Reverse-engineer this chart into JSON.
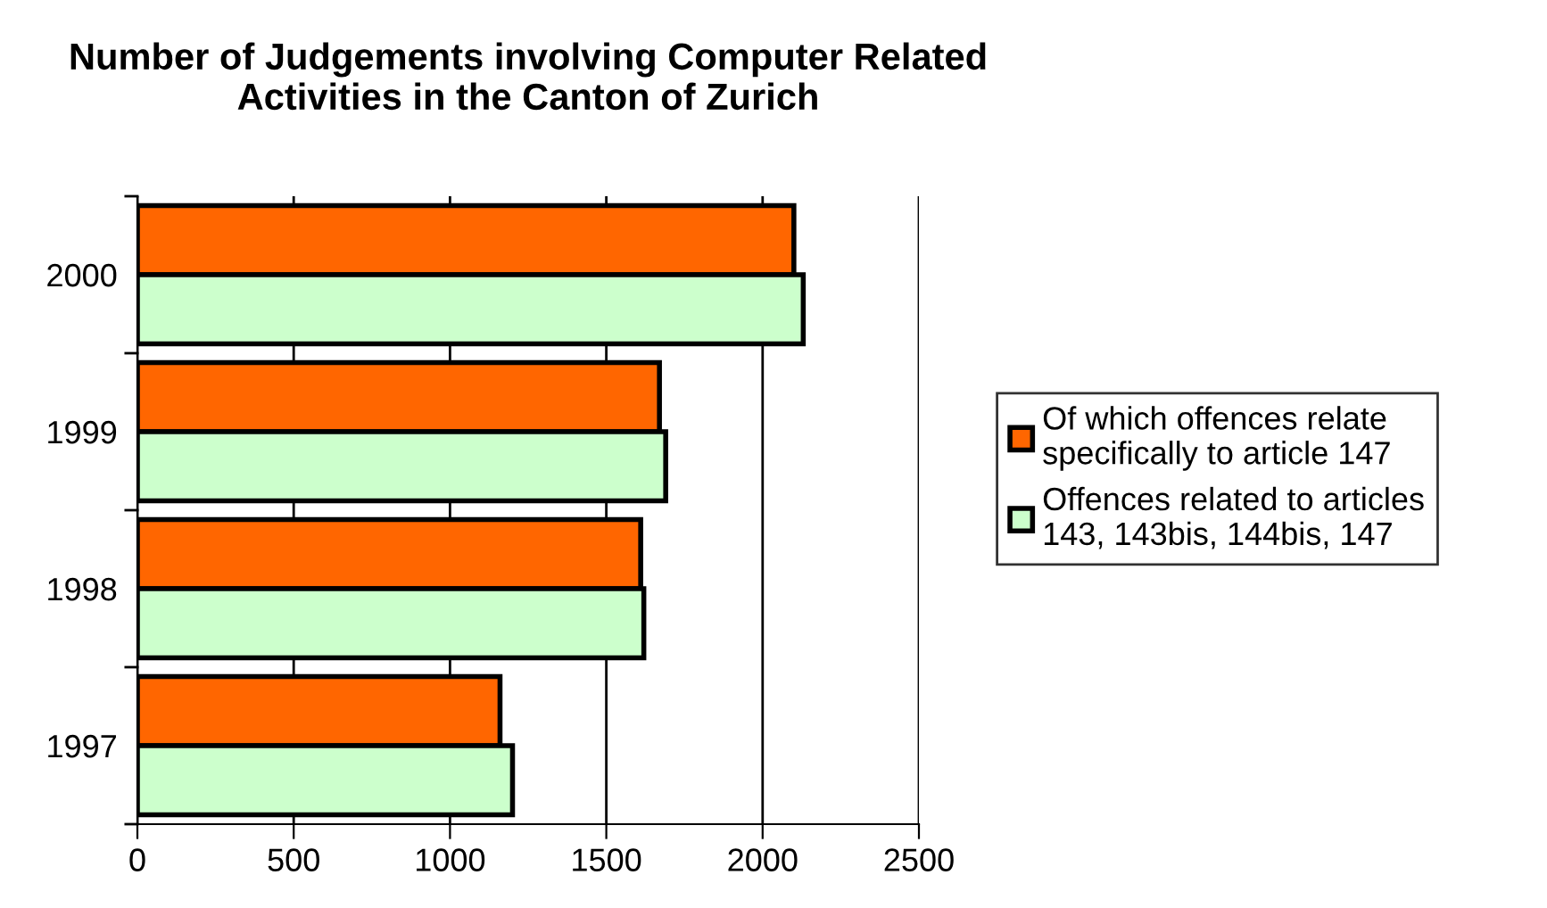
{
  "chart_data": {
    "type": "bar",
    "orientation": "horizontal",
    "title": "Number of Judgements involving Computer Related\nActivities in the Canton of Zurich",
    "categories": [
      "2000",
      "1999",
      "1998",
      "1997"
    ],
    "series": [
      {
        "name": "Of which offences relate\nspecifically to article 147",
        "color": "#ff6600",
        "values": [
          2100,
          1670,
          1610,
          1160
        ]
      },
      {
        "name": "Offences related to articles\n143, 143bis, 144bis, 147",
        "color": "#ccffcc",
        "values": [
          2130,
          1690,
          1620,
          1200
        ]
      }
    ],
    "xlim": [
      0,
      2500
    ],
    "xticks": [
      0,
      500,
      1000,
      1500,
      2000,
      2500
    ],
    "grid": "x",
    "legend": "right"
  }
}
